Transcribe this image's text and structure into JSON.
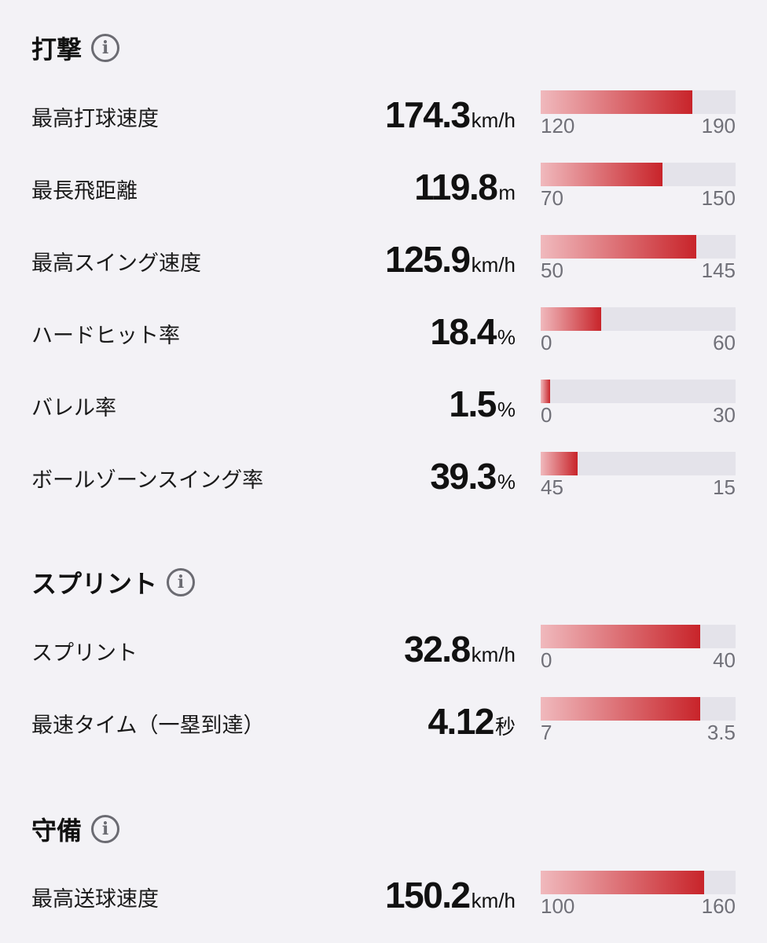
{
  "sections": [
    {
      "title": "打撃",
      "rows": [
        {
          "label": "最高打球速度",
          "value": "174.3",
          "unit": "km/h",
          "min": "120",
          "max": "190",
          "fill": 0.78
        },
        {
          "label": "最長飛距離",
          "value": "119.8",
          "unit": "m",
          "min": "70",
          "max": "150",
          "fill": 0.625
        },
        {
          "label": "最高スイング速度",
          "value": "125.9",
          "unit": "km/h",
          "min": "50",
          "max": "145",
          "fill": 0.8
        },
        {
          "label": "ハードヒット率",
          "value": "18.4",
          "unit": "%",
          "min": "0",
          "max": "60",
          "fill": 0.31
        },
        {
          "label": "バレル率",
          "value": "1.5",
          "unit": "%",
          "min": "0",
          "max": "30",
          "fill": 0.05
        },
        {
          "label": "ボールゾーンスイング率",
          "value": "39.3",
          "unit": "%",
          "min": "45",
          "max": "15",
          "fill": 0.19
        }
      ]
    },
    {
      "title": "スプリント",
      "rows": [
        {
          "label": "スプリント",
          "value": "32.8",
          "unit": "km/h",
          "min": "0",
          "max": "40",
          "fill": 0.82
        },
        {
          "label": "最速タイム（一塁到達）",
          "value": "4.12",
          "unit": "秒",
          "min": "7",
          "max": "3.5",
          "fill": 0.82
        }
      ]
    },
    {
      "title": "守備",
      "rows": [
        {
          "label": "最高送球速度",
          "value": "150.2",
          "unit": "km/h",
          "min": "100",
          "max": "160",
          "fill": 0.84
        }
      ]
    }
  ],
  "info_icon": "i",
  "colors": {
    "fill_start": "#f0b9bd",
    "fill_end": "#c8242a",
    "track": "#e4e3ea",
    "background": "#f3f2f6"
  }
}
